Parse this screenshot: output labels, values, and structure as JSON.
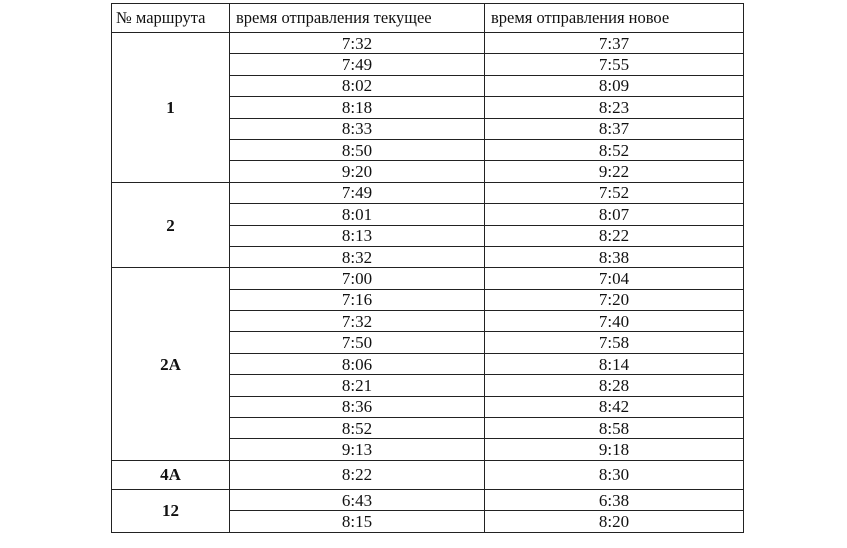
{
  "headers": {
    "route": "№ маршрута",
    "current": "время отправления текущее",
    "new": "время отправления новое"
  },
  "routes": [
    {
      "route": "1",
      "current": [
        "7:32",
        "7:49",
        "8:02",
        "8:18",
        "8:33",
        "8:50",
        "9:20"
      ],
      "new": [
        "7:37",
        "7:55",
        "8:09",
        "8:23",
        "8:37",
        "8:52",
        "9:22"
      ]
    },
    {
      "route": "2",
      "current": [
        "7:49",
        "8:01",
        "8:13",
        "8:32"
      ],
      "new": [
        "7:52",
        "8:07",
        "8:22",
        "8:38"
      ]
    },
    {
      "route": "2А",
      "current": [
        "7:00",
        "7:16",
        "7:32",
        "7:50",
        "8:06",
        "8:21",
        "8:36",
        "8:52",
        "9:13"
      ],
      "new": [
        "7:04",
        "7:20",
        "7:40",
        "7:58",
        "8:14",
        "8:28",
        "8:42",
        "8:58",
        "9:18"
      ]
    },
    {
      "route": "4А",
      "current": [
        "8:22"
      ],
      "new": [
        "8:30"
      ]
    },
    {
      "route": "12",
      "current": [
        "6:43",
        "8:15"
      ],
      "new": [
        "6:38",
        "8:20"
      ]
    }
  ]
}
